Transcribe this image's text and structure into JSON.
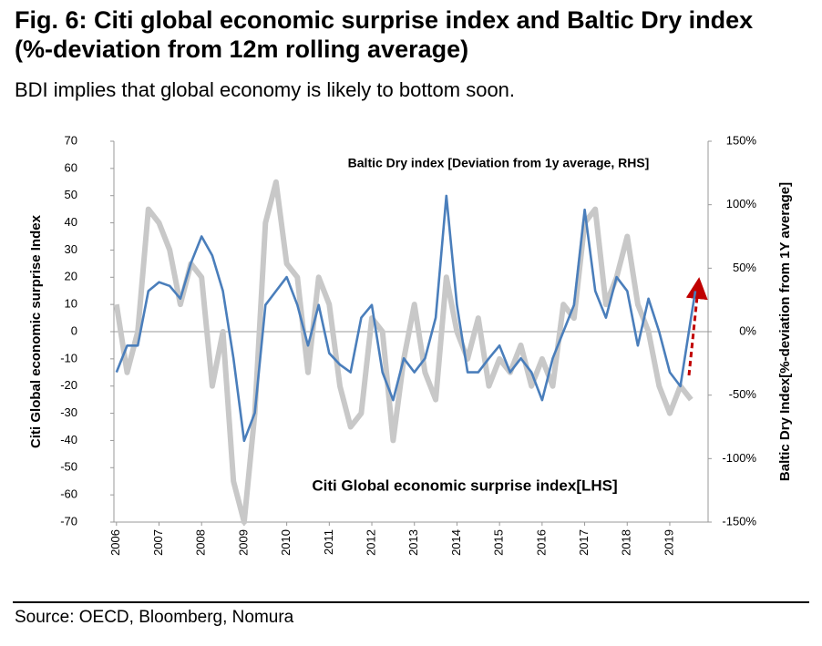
{
  "chart_data": {
    "type": "line",
    "title": "Fig. 6: Citi global economic surprise index and Baltic Dry index (%-deviation from 12m rolling average)",
    "subtitle": "BDI implies that global economy is likely to bottom soon.",
    "source": "Source: OECD, Bloomberg, Nomura",
    "ylabel": "Citi Global economic surprise Index",
    "y2label": "Baltic Dry Index[%-deviation from 1Y average]",
    "xlim": [
      2005.94,
      2019.9
    ],
    "xticks": [
      2006,
      2007,
      2008,
      2009,
      2010,
      2011,
      2012,
      2013,
      2014,
      2015,
      2016,
      2017,
      2018,
      2019
    ],
    "ylim": [
      -70,
      70
    ],
    "yticks": [
      -70,
      -60,
      -50,
      -40,
      -30,
      -20,
      -10,
      0,
      10,
      20,
      30,
      40,
      50,
      60,
      70
    ],
    "y2lim": [
      -150,
      150
    ],
    "y2ticks": [
      {
        "value": -150,
        "label": "-150%"
      },
      {
        "value": -100,
        "label": "-100%"
      },
      {
        "value": -50,
        "label": "-50%"
      },
      {
        "value": 0,
        "label": "0%"
      },
      {
        "value": 50,
        "label": "50%"
      },
      {
        "value": 100,
        "label": "100%"
      },
      {
        "value": 150,
        "label": "150%"
      }
    ],
    "series": [
      {
        "name": "Citi Global economic surprise index[LHS]",
        "color": "#c8c8c8",
        "x": [
          2006,
          2006.25,
          2006.5,
          2006.75,
          2007,
          2007.25,
          2007.5,
          2007.75,
          2008,
          2008.25,
          2008.5,
          2008.75,
          2009,
          2009.25,
          2009.5,
          2009.75,
          2010,
          2010.25,
          2010.5,
          2010.75,
          2011,
          2011.25,
          2011.5,
          2011.75,
          2012,
          2012.25,
          2012.5,
          2012.75,
          2013,
          2013.25,
          2013.5,
          2013.75,
          2014,
          2014.25,
          2014.5,
          2014.75,
          2015,
          2015.25,
          2015.5,
          2015.75,
          2016,
          2016.25,
          2016.5,
          2016.75,
          2017,
          2017.25,
          2017.5,
          2017.75,
          2018,
          2018.25,
          2018.5,
          2018.75,
          2019,
          2019.25,
          2019.5
        ],
        "values": [
          10,
          -15,
          0,
          45,
          40,
          30,
          10,
          25,
          20,
          -20,
          0,
          -55,
          -70,
          -30,
          40,
          55,
          25,
          20,
          -15,
          20,
          10,
          -20,
          -35,
          -30,
          5,
          0,
          -40,
          -10,
          10,
          -15,
          -25,
          20,
          0,
          -10,
          5,
          -20,
          -10,
          -15,
          -5,
          -20,
          -10,
          -20,
          10,
          5,
          40,
          45,
          10,
          20,
          35,
          10,
          0,
          -20,
          -30,
          -20,
          -25
        ]
      },
      {
        "name": "Baltic Dry index [Deviation from 1y average, RHS]",
        "color": "#4a7ebb",
        "axis": "y2",
        "x": [
          2006,
          2006.25,
          2006.5,
          2006.75,
          2007,
          2007.25,
          2007.5,
          2007.75,
          2008,
          2008.25,
          2008.5,
          2008.75,
          2009,
          2009.25,
          2009.5,
          2009.75,
          2010,
          2010.25,
          2010.5,
          2010.75,
          2011,
          2011.25,
          2011.5,
          2011.75,
          2012,
          2012.25,
          2012.5,
          2012.75,
          2013,
          2013.25,
          2013.5,
          2013.75,
          2014,
          2014.25,
          2014.5,
          2014.75,
          2015,
          2015.25,
          2015.5,
          2015.75,
          2016,
          2016.25,
          2016.5,
          2016.75,
          2017,
          2017.25,
          2017.5,
          2017.75,
          2018,
          2018.25,
          2018.5,
          2018.75,
          2019,
          2019.25,
          2019.5,
          2019.6
        ],
        "values": [
          -32,
          -11,
          -11,
          32,
          39,
          36,
          26,
          54,
          75,
          60,
          32,
          -21,
          -86,
          -64,
          21,
          32,
          43,
          21,
          -11,
          21,
          -17,
          -26,
          -32,
          11,
          21,
          -32,
          -54,
          -21,
          -32,
          -21,
          11,
          107,
          21,
          -32,
          -32,
          -21,
          -11,
          -32,
          -21,
          -32,
          -54,
          -21,
          0,
          21,
          96,
          32,
          11,
          43,
          32,
          -11,
          26,
          0,
          -32,
          -43,
          11,
          32
        ]
      }
    ]
  }
}
